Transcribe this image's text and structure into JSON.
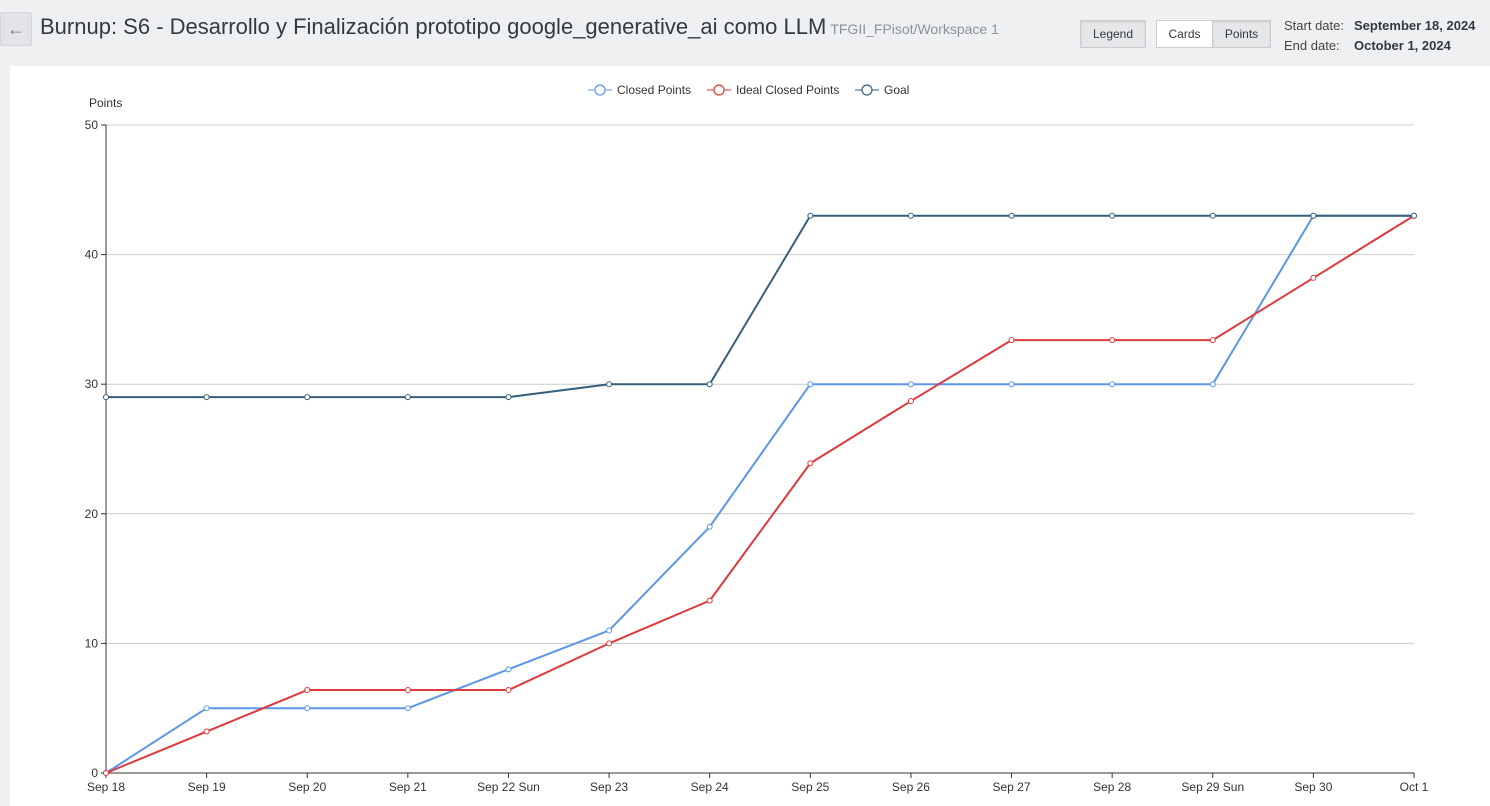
{
  "header": {
    "back_icon": "arrow-left-icon",
    "title": "Burnup: S6 - Desarrollo y Finalización prototipo google_generative_ai como LLM",
    "workspace": "TFGII_FPisot/Workspace 1",
    "legend_label": "Legend",
    "cards_label": "Cards",
    "points_label": "Points",
    "start_date_label": "Start date:",
    "start_date": "September 18, 2024",
    "end_date_label": "End date:",
    "end_date": "October 1, 2024"
  },
  "chart_data": {
    "type": "line",
    "ylabel": "Points",
    "ylim": [
      0,
      50
    ],
    "yticks": [
      0,
      10,
      20,
      30,
      40,
      50
    ],
    "categories": [
      "Sep 18",
      "Sep 19",
      "Sep 20",
      "Sep 21",
      "Sep 22 Sun",
      "Sep 23",
      "Sep 24",
      "Sep 25",
      "Sep 26",
      "Sep 27",
      "Sep 28",
      "Sep 29 Sun",
      "Sep 30",
      "Oct 1"
    ],
    "grid": true,
    "legend_position": "top-center",
    "series": [
      {
        "name": "Closed Points",
        "color": "#5b96e8",
        "values": [
          0,
          5,
          5,
          5,
          8,
          11,
          19,
          30,
          30,
          30,
          30,
          30,
          43,
          43
        ]
      },
      {
        "name": "Ideal Closed Points",
        "color": "#e0393b",
        "values": [
          0,
          3.2,
          6.4,
          6.4,
          6.4,
          10,
          13.3,
          23.9,
          28.7,
          33.4,
          33.4,
          33.4,
          38.2,
          43
        ]
      },
      {
        "name": "Goal",
        "color": "#355f7c",
        "values": [
          29,
          29,
          29,
          29,
          29,
          30,
          30,
          43,
          43,
          43,
          43,
          43,
          43,
          43
        ]
      }
    ]
  }
}
